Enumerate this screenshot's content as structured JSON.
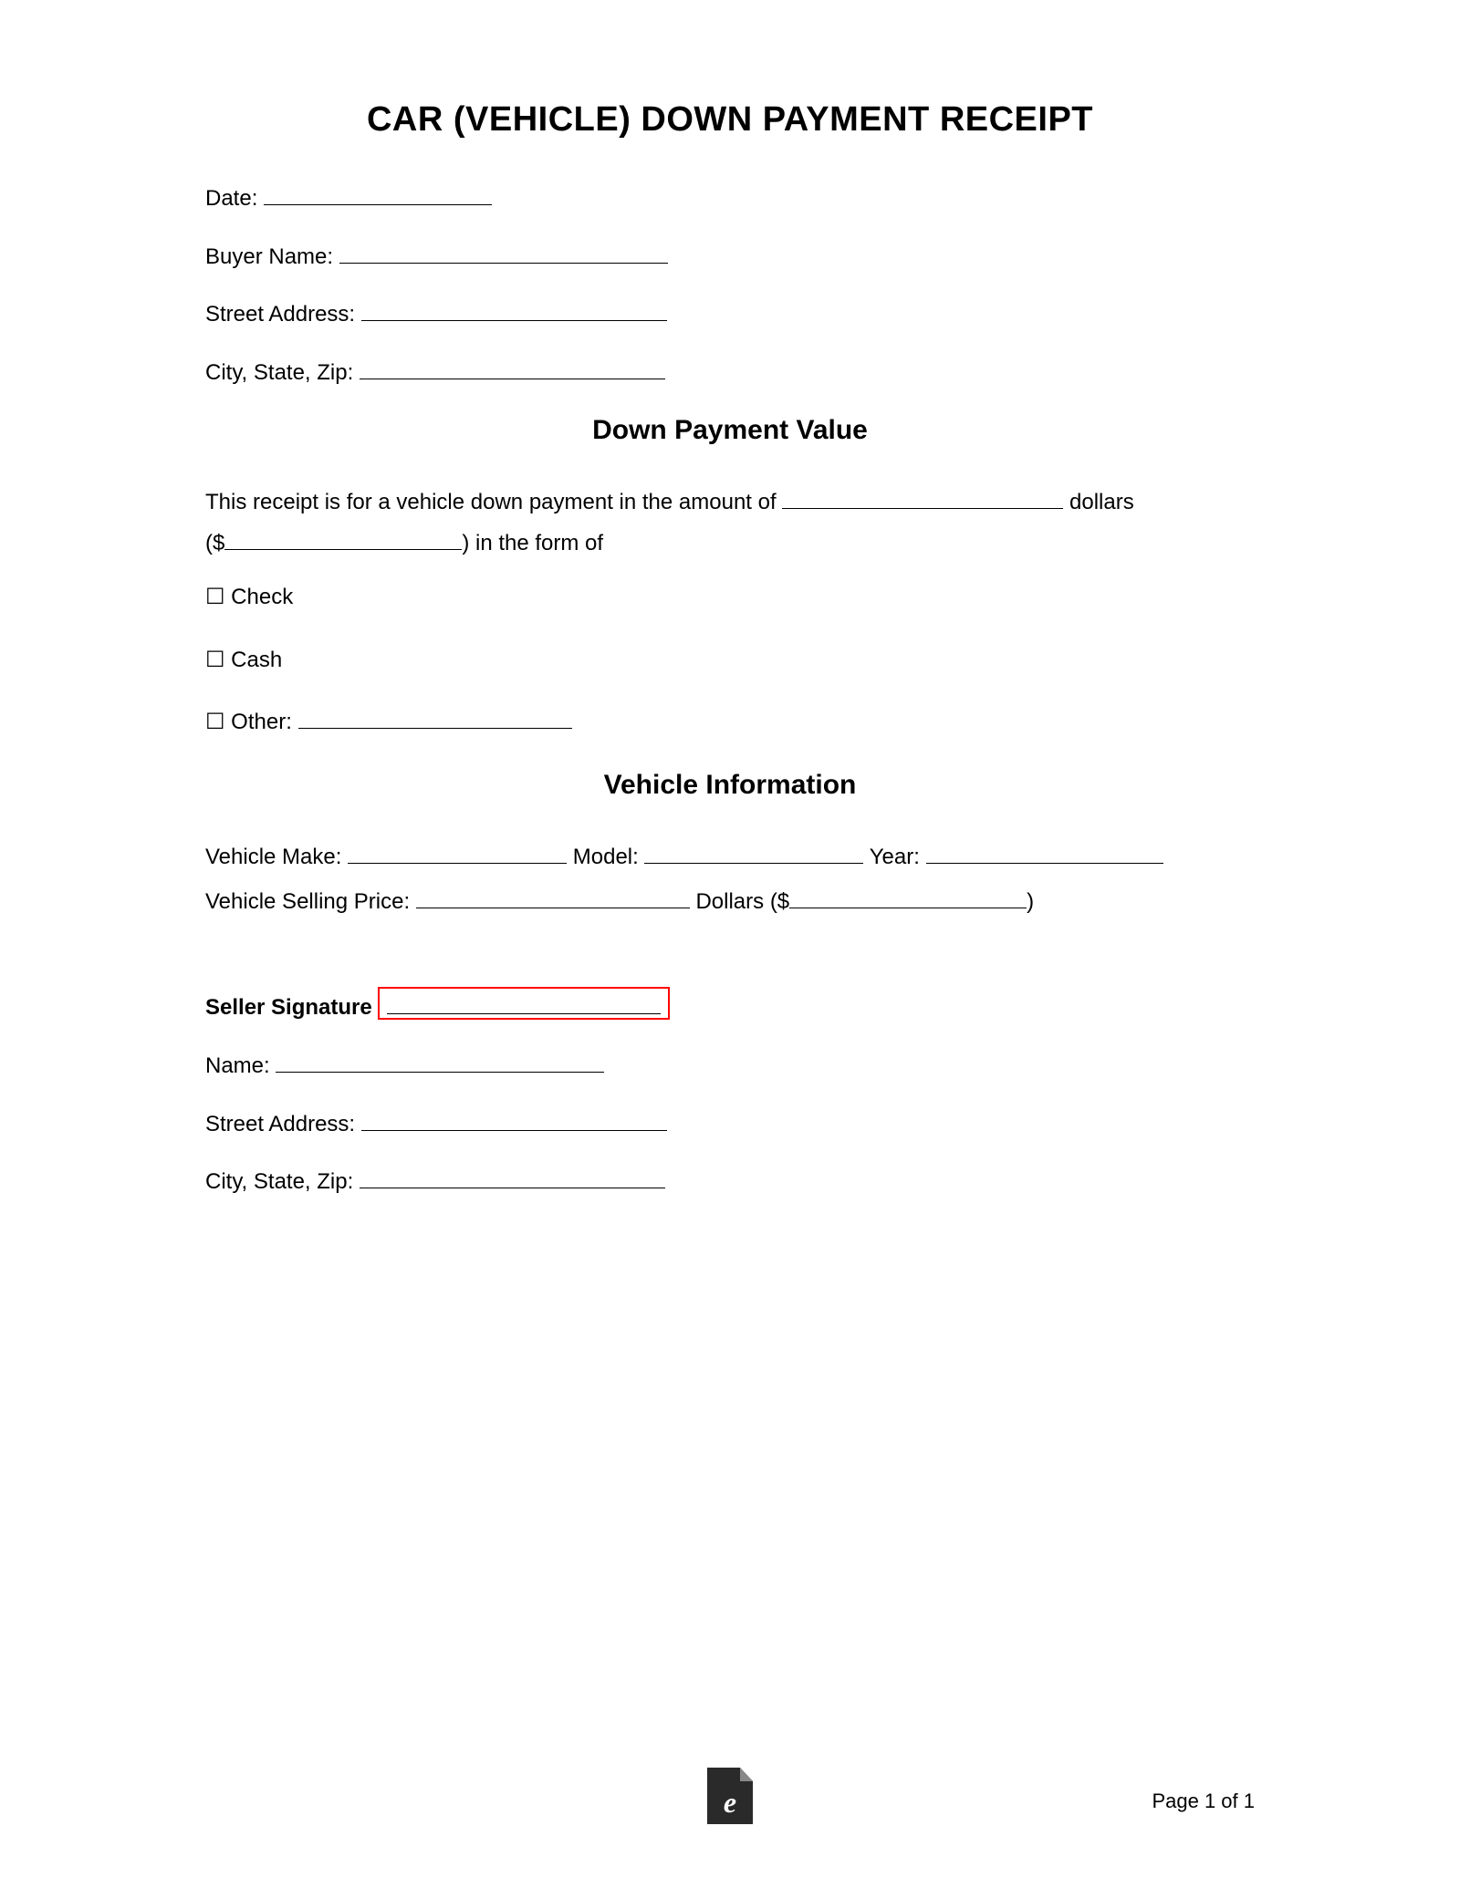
{
  "title": "CAR (VEHICLE) DOWN PAYMENT RECEIPT",
  "fields": {
    "date_label": "Date:",
    "buyer_name_label": "Buyer Name:",
    "street_address_label": "Street Address:",
    "city_state_zip_label": "City, State, Zip:"
  },
  "section_down_payment": {
    "heading": "Down Payment Value",
    "para_pre": "This receipt is for a vehicle down payment in the amount of ",
    "para_dollars": " dollars",
    "para_dollar_sign": "($",
    "para_form_of": ") in the form of",
    "checkbox_check": "☐ Check",
    "checkbox_cash": "☐ Cash",
    "checkbox_other": "☐ Other:"
  },
  "section_vehicle_info": {
    "heading": "Vehicle Information",
    "make_label": "Vehicle Make:",
    "model_label": " Model:",
    "year_label": " Year:",
    "selling_price_label": "Vehicle Selling Price:",
    "dollars_text": " Dollars ($",
    "close_paren": ")"
  },
  "seller": {
    "signature_label": "Seller Signature",
    "name_label": "Name:",
    "street_address_label": "Street Address:",
    "city_state_zip_label": "City, State, Zip:"
  },
  "footer": {
    "page_text": "Page 1 of 1",
    "icon_letter": "e"
  },
  "colors": {
    "text": "#000000",
    "background": "#ffffff",
    "signature_box_border": "#ff0000",
    "icon_bg": "#2a2a2a",
    "icon_fold": "#888888",
    "icon_letter": "#ffffff"
  }
}
